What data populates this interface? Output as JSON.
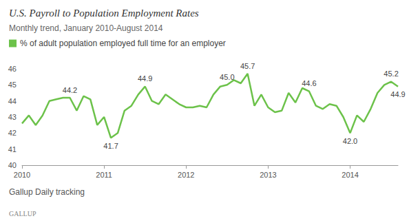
{
  "chart_data": {
    "type": "line",
    "title": "U.S. Payroll to Population Employment Rates",
    "subtitle": "Monthly trend, January 2010-August 2014",
    "source": "Gallup Daily tracking",
    "logo": "GALLUP",
    "categories": [
      "2010",
      null,
      null,
      null,
      null,
      null,
      null,
      null,
      null,
      null,
      null,
      null,
      "2011",
      null,
      null,
      null,
      null,
      null,
      null,
      null,
      null,
      null,
      null,
      null,
      "2012",
      null,
      null,
      null,
      null,
      null,
      null,
      null,
      null,
      null,
      null,
      null,
      "2013",
      null,
      null,
      null,
      null,
      null,
      null,
      null,
      null,
      null,
      null,
      null,
      "2014",
      null,
      null,
      null,
      null,
      null,
      null,
      null
    ],
    "series": [
      {
        "name": "% of adult population employed full time for an employer",
        "color": "#6cc24a",
        "values": [
          42.6,
          43.1,
          42.5,
          43.1,
          44.0,
          44.1,
          44.2,
          44.2,
          43.4,
          44.3,
          44.1,
          42.5,
          43.0,
          41.7,
          42.0,
          43.4,
          43.7,
          44.4,
          44.9,
          44.0,
          43.8,
          44.4,
          44.1,
          43.8,
          43.6,
          43.6,
          43.7,
          43.6,
          44.4,
          44.9,
          45.0,
          45.3,
          45.1,
          45.7,
          43.7,
          44.4,
          43.6,
          43.3,
          43.4,
          44.5,
          43.9,
          44.8,
          44.6,
          43.7,
          43.5,
          43.8,
          43.7,
          43.0,
          42.0,
          43.1,
          42.7,
          43.5,
          44.5,
          45.0,
          45.2,
          44.9
        ]
      }
    ],
    "annotations": [
      {
        "index": 7,
        "text": "44.2"
      },
      {
        "index": 13,
        "text": "41.7"
      },
      {
        "index": 18,
        "text": "44.9"
      },
      {
        "index": 30,
        "text": "45.0"
      },
      {
        "index": 33,
        "text": "45.7"
      },
      {
        "index": 42,
        "text": "44.6"
      },
      {
        "index": 48,
        "text": "42.0"
      },
      {
        "index": 54,
        "text": "45.2"
      },
      {
        "index": 55,
        "text": "44.9"
      }
    ],
    "ylim": [
      40,
      46
    ],
    "yticks": [
      40,
      41,
      42,
      43,
      44,
      45,
      46
    ],
    "grid": false,
    "legend": "top-left"
  }
}
